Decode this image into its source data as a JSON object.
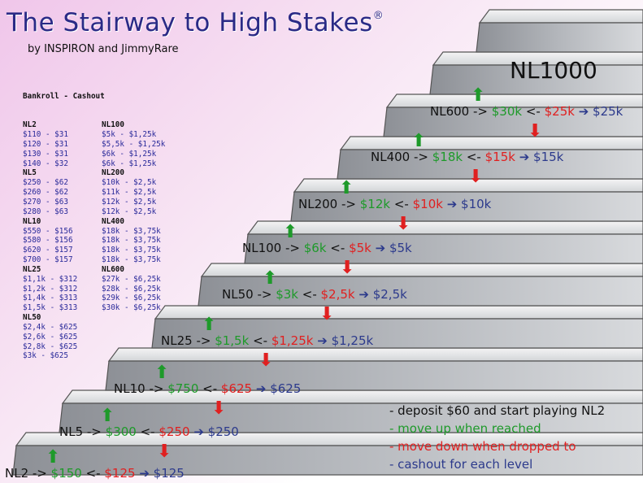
{
  "header": {
    "title": "The Stairway to High Stakes",
    "registered_mark": "®",
    "byline": "by INSPIRON and JimmyRare"
  },
  "bankroll": {
    "heading": "Bankroll - Cashout",
    "left_column": [
      {
        "level": "NL2",
        "rows": [
          "$110 - $31",
          "$120 - $31",
          "$130 - $31",
          "$140 - $32"
        ]
      },
      {
        "level": "NL5",
        "rows": [
          "$250 - $62",
          "$260 - $62",
          "$270 - $63",
          "$280 - $63"
        ]
      },
      {
        "level": "NL10",
        "rows": [
          "$550 - $156",
          "$580 - $156",
          "$620 - $157",
          "$700 - $157"
        ]
      },
      {
        "level": "NL25",
        "rows": [
          "$1,1k - $312",
          "$1,2k - $312",
          "$1,4k - $313",
          "$1,5k - $313"
        ]
      },
      {
        "level": "NL50",
        "rows": [
          "$2,4k - $625",
          "$2,6k - $625",
          "$2,8k - $625",
          "$3k - $625"
        ]
      }
    ],
    "right_column": [
      {
        "level": "NL100",
        "rows": [
          "$5k - $1,25k",
          "$5,5k - $1,25k",
          "$6k - $1,25k",
          "$6k - $1,25k"
        ]
      },
      {
        "level": "NL200",
        "rows": [
          "$10k - $2,5k",
          "$11k - $2,5k",
          "$12k - $2,5k",
          "$12k - $2,5k"
        ]
      },
      {
        "level": "NL400",
        "rows": [
          "$18k - $3,75k",
          "$18k - $3,75k",
          "$18k - $3,75k",
          "$18k - $3,75k"
        ]
      },
      {
        "level": "NL600",
        "rows": [
          "$27k - $6,25k",
          "$28k - $6,25k",
          "$29k - $6,25k",
          "$30k - $6,25k"
        ]
      }
    ]
  },
  "stairs": {
    "top_level": "NL1000",
    "steps": [
      {
        "level": "NL2",
        "up": "$150",
        "down": "$125",
        "cashout": "$125"
      },
      {
        "level": "NL5",
        "up": "$300",
        "down": "$250",
        "cashout": "$250"
      },
      {
        "level": "NL10",
        "up": "$750",
        "down": "$625",
        "cashout": "$625"
      },
      {
        "level": "NL25",
        "up": "$1,5k",
        "down": "$1,25k",
        "cashout": "$1,25k"
      },
      {
        "level": "NL50",
        "up": "$3k",
        "down": "$2,5k",
        "cashout": "$2,5k"
      },
      {
        "level": "NL100",
        "up": "$6k",
        "down": "$5k",
        "cashout": "$5k"
      },
      {
        "level": "NL200",
        "up": "$12k",
        "down": "$10k",
        "cashout": "$10k"
      },
      {
        "level": "NL400",
        "up": "$18k",
        "down": "$15k",
        "cashout": "$15k"
      },
      {
        "level": "NL600",
        "up": "$30k",
        "down": "$25k",
        "cashout": "$25k"
      }
    ],
    "up_sep": " -> ",
    "down_sep": " <- "
  },
  "legend": {
    "items": [
      {
        "text": "- deposit $60 and start playing NL2",
        "color": "#111111"
      },
      {
        "text": "- move up when reached",
        "color": "#1e9a2a"
      },
      {
        "text": "- move down when dropped to",
        "color": "#e02020"
      },
      {
        "text": "- cashout for each level",
        "color": "#2c3a8c"
      }
    ]
  },
  "colors": {
    "up": "#1e9a2a",
    "down": "#e02020",
    "cashout": "#2c3a8c",
    "title": "#2a2a86"
  }
}
